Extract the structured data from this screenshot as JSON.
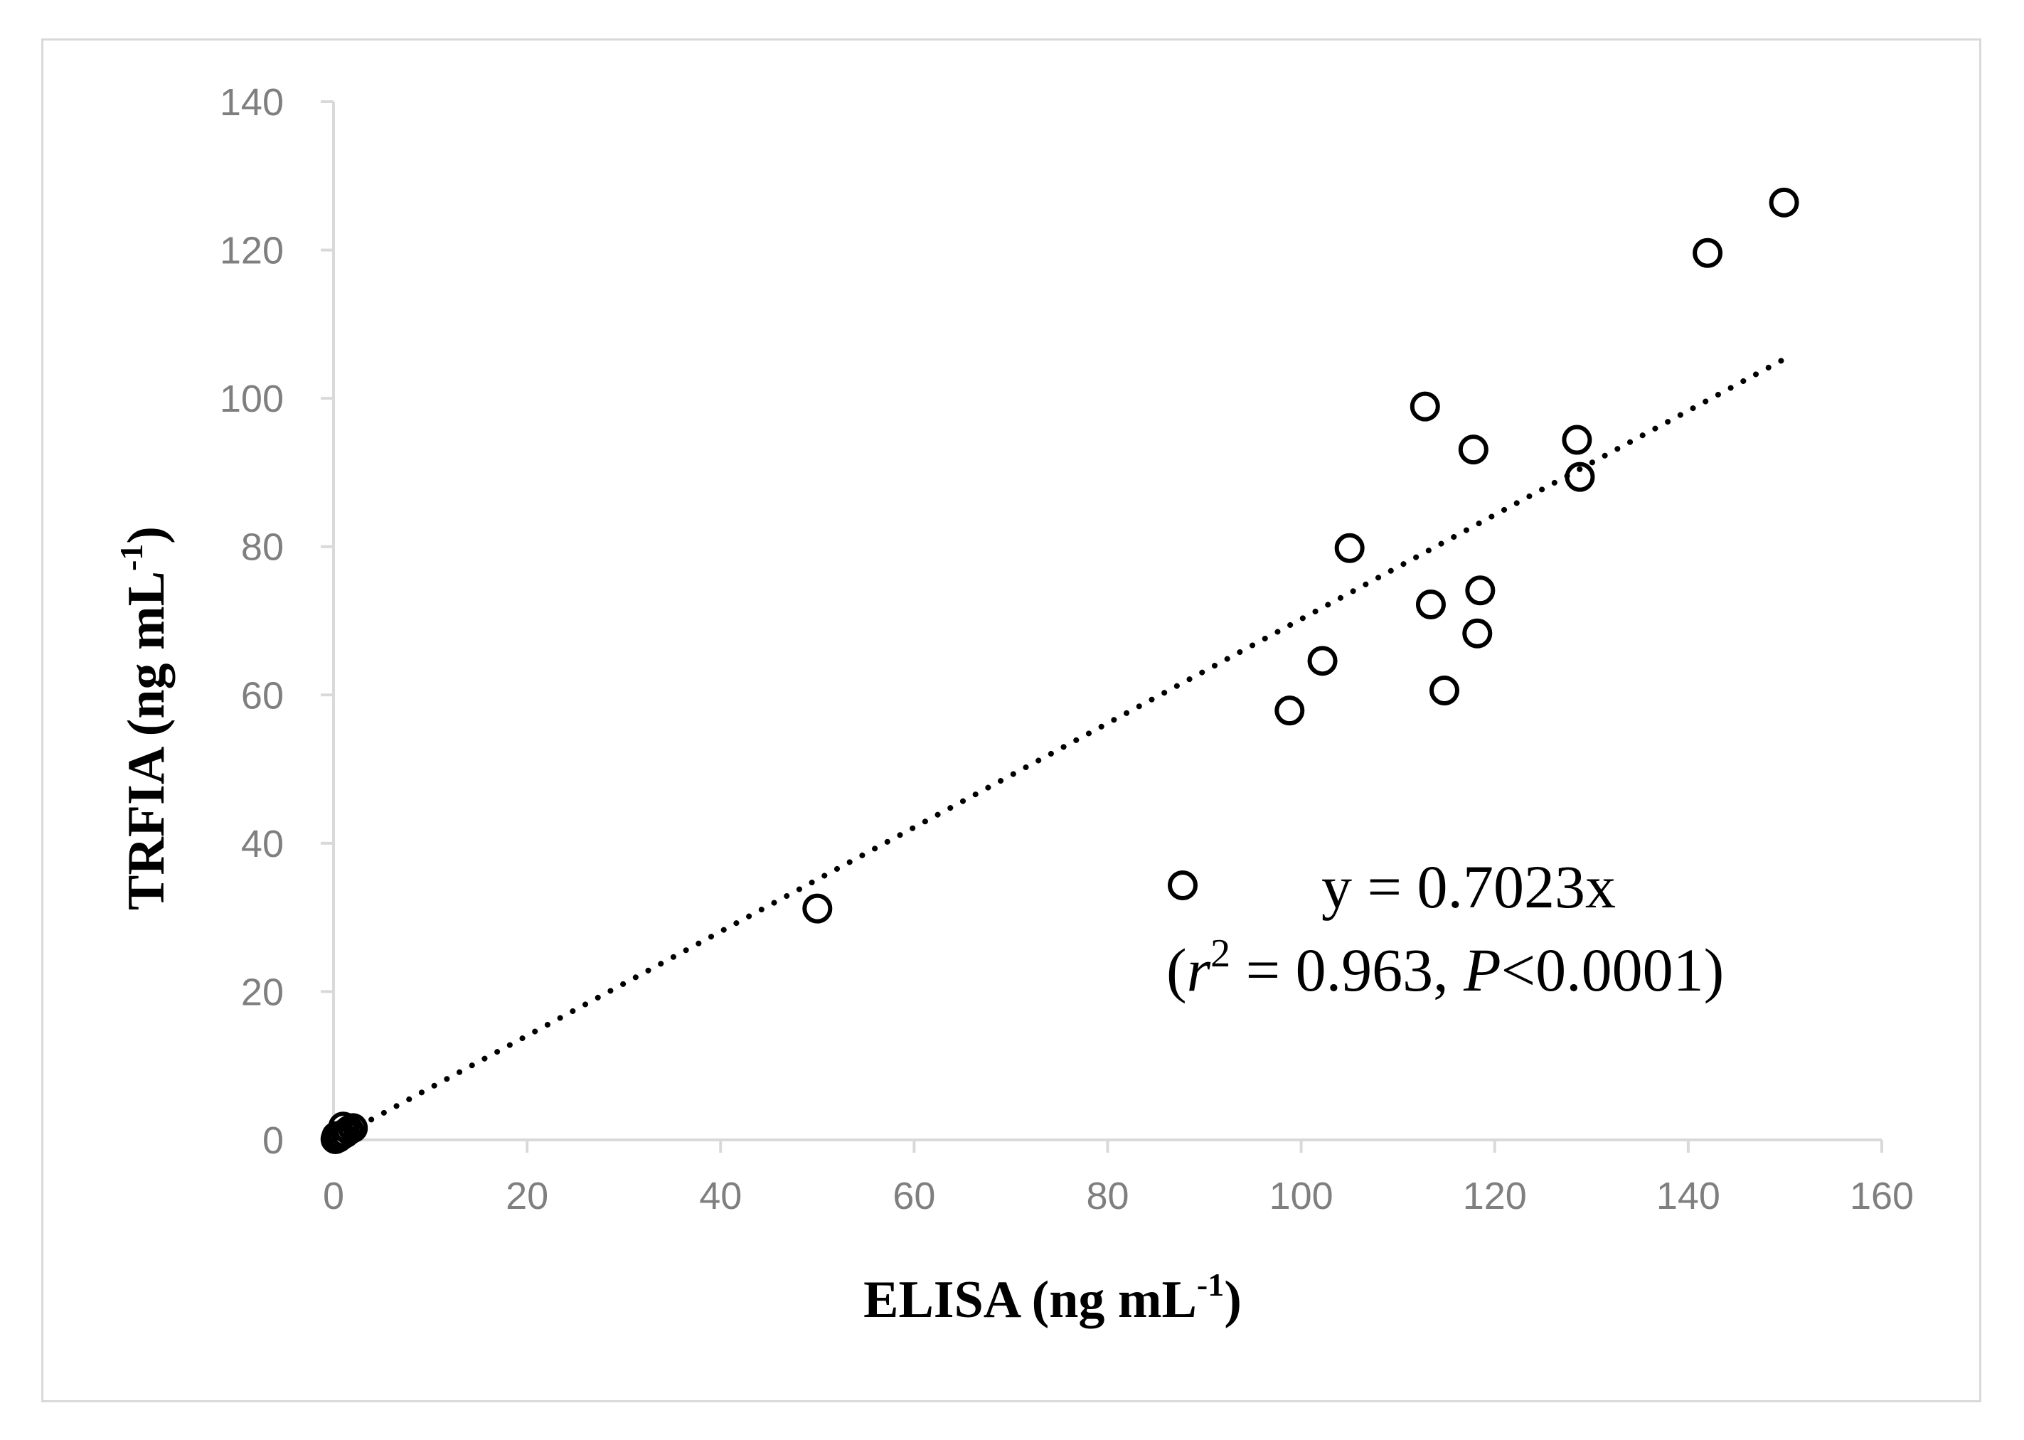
{
  "chart_data": {
    "type": "scatter",
    "title": "",
    "xlabel": "ELISA (ng mL",
    "xlabel_sup": "-1",
    "xlabel_end": ")",
    "ylabel": "TRFIA (ng mL",
    "ylabel_sup": "-1",
    "ylabel_end": ")",
    "xlim": [
      0,
      160
    ],
    "ylim": [
      0,
      140
    ],
    "x_ticks": [
      0,
      20,
      40,
      60,
      80,
      100,
      120,
      140,
      160
    ],
    "y_ticks": [
      0,
      20,
      40,
      60,
      80,
      100,
      120,
      140
    ],
    "grid": false,
    "marker": "open-circle",
    "marker_color": "#000000",
    "series": [
      {
        "points": [
          {
            "x": 0.2,
            "y": 0.1
          },
          {
            "x": 0.5,
            "y": 0.3
          },
          {
            "x": 0.8,
            "y": 0.6
          },
          {
            "x": 1.2,
            "y": 0.9
          },
          {
            "x": 1.6,
            "y": 1.3
          },
          {
            "x": 2.0,
            "y": 1.6
          },
          {
            "x": 0.3,
            "y": 0.5
          },
          {
            "x": 1.0,
            "y": 1.8
          },
          {
            "x": 50,
            "y": 31.2
          },
          {
            "x": 98.8,
            "y": 57.9
          },
          {
            "x": 102.2,
            "y": 64.6
          },
          {
            "x": 105.0,
            "y": 79.8
          },
          {
            "x": 112.8,
            "y": 98.9
          },
          {
            "x": 113.4,
            "y": 72.2
          },
          {
            "x": 114.8,
            "y": 60.6
          },
          {
            "x": 117.8,
            "y": 93.1
          },
          {
            "x": 118.2,
            "y": 68.3
          },
          {
            "x": 118.5,
            "y": 74.1
          },
          {
            "x": 128.5,
            "y": 94.4
          },
          {
            "x": 128.8,
            "y": 89.4
          },
          {
            "x": 142.0,
            "y": 119.6
          },
          {
            "x": 149.9,
            "y": 126.4
          }
        ]
      }
    ],
    "trendline": {
      "type": "linear-through-origin",
      "slope": 0.7023,
      "x_range": [
        0,
        150
      ],
      "style": "dotted"
    },
    "legend": {
      "placement": "lower-right",
      "equation": "y = 0.7023x",
      "stats_open": "(",
      "stats_r": "r",
      "stats_r_sup": "2",
      "stats_mid": " = 0.963, ",
      "stats_p": "P",
      "stats_end": "<0.0001)"
    }
  }
}
